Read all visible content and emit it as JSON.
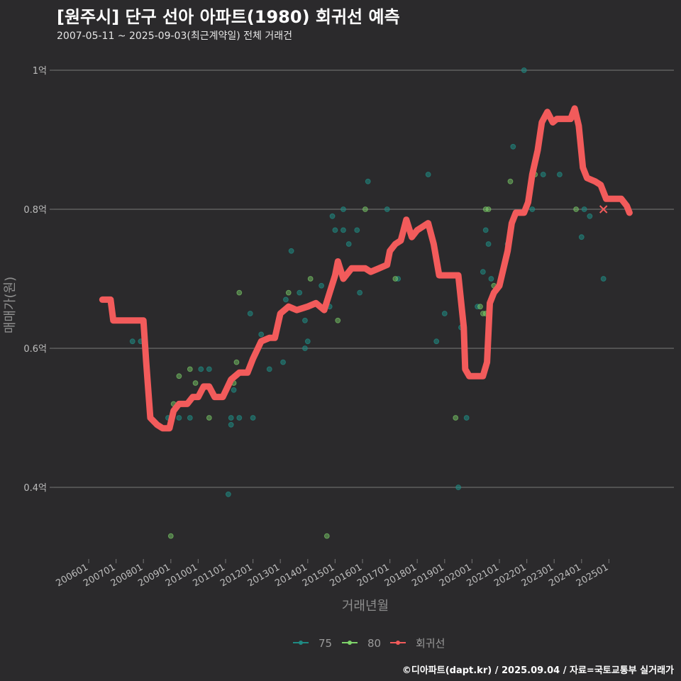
{
  "title": "[원주시] 단구 선아 아파트(1980) 회귀선 예측",
  "subtitle": "2007-05-11 ~ 2025-09-03(최근계약일) 전체 거래건",
  "caption": "©디아파트(dapt.kr) / 2025.09.04 / 자료=국토교통부 실거래가",
  "colors": {
    "background": "#2b2a2c",
    "grid": "#6a6a6a",
    "series_75": "#1f8a83",
    "series_80": "#7ed46a",
    "regression": "#f25b5b"
  },
  "chart_data": {
    "type": "scatter",
    "xlabel": "거래년월",
    "ylabel": "매매가(원)",
    "x_range": [
      2006.0,
      2025.9
    ],
    "ylim": [
      0.3,
      1.0
    ],
    "y_ticks": [
      {
        "value": 0.4,
        "label": "0.4억"
      },
      {
        "value": 0.6,
        "label": "0.6억"
      },
      {
        "value": 0.8,
        "label": "0.8억"
      },
      {
        "value": 1.0,
        "label": "1억"
      }
    ],
    "x_ticks": [
      {
        "value": 2006.0,
        "label": "200601"
      },
      {
        "value": 2007.0,
        "label": "200701"
      },
      {
        "value": 2008.0,
        "label": "200801"
      },
      {
        "value": 2009.0,
        "label": "200901"
      },
      {
        "value": 2010.0,
        "label": "201001"
      },
      {
        "value": 2011.0,
        "label": "201101"
      },
      {
        "value": 2012.0,
        "label": "201201"
      },
      {
        "value": 2013.0,
        "label": "201301"
      },
      {
        "value": 2014.0,
        "label": "201401"
      },
      {
        "value": 2015.0,
        "label": "201501"
      },
      {
        "value": 2016.0,
        "label": "201601"
      },
      {
        "value": 2017.0,
        "label": "201701"
      },
      {
        "value": 2018.0,
        "label": "201801"
      },
      {
        "value": 2019.0,
        "label": "201901"
      },
      {
        "value": 2020.0,
        "label": "202001"
      },
      {
        "value": 2021.0,
        "label": "202101"
      },
      {
        "value": 2022.0,
        "label": "202201"
      },
      {
        "value": 2023.0,
        "label": "202301"
      },
      {
        "value": 2024.0,
        "label": "202401"
      },
      {
        "value": 2025.0,
        "label": "202501"
      }
    ],
    "grid": "horizontal",
    "legend_position": "bottom",
    "legend": [
      {
        "label": "75",
        "kind": "series_75"
      },
      {
        "label": "80",
        "kind": "series_80"
      },
      {
        "label": "회귀선",
        "kind": "regression"
      }
    ],
    "series": [
      {
        "name": "75",
        "points": [
          [
            2007.6,
            0.61
          ],
          [
            2007.9,
            0.61
          ],
          [
            2008.9,
            0.5
          ],
          [
            2009.3,
            0.5
          ],
          [
            2009.7,
            0.5
          ],
          [
            2010.1,
            0.57
          ],
          [
            2010.4,
            0.57
          ],
          [
            2010.6,
            0.53
          ],
          [
            2011.1,
            0.39
          ],
          [
            2011.2,
            0.5
          ],
          [
            2011.2,
            0.49
          ],
          [
            2011.3,
            0.54
          ],
          [
            2011.5,
            0.5
          ],
          [
            2011.9,
            0.65
          ],
          [
            2012.0,
            0.5
          ],
          [
            2012.3,
            0.62
          ],
          [
            2012.6,
            0.57
          ],
          [
            2013.1,
            0.58
          ],
          [
            2013.2,
            0.67
          ],
          [
            2013.4,
            0.74
          ],
          [
            2013.7,
            0.68
          ],
          [
            2013.9,
            0.64
          ],
          [
            2013.9,
            0.6
          ],
          [
            2014.0,
            0.61
          ],
          [
            2014.5,
            0.69
          ],
          [
            2014.8,
            0.66
          ],
          [
            2014.9,
            0.79
          ],
          [
            2015.0,
            0.77
          ],
          [
            2015.3,
            0.8
          ],
          [
            2015.3,
            0.77
          ],
          [
            2015.5,
            0.75
          ],
          [
            2015.8,
            0.77
          ],
          [
            2015.9,
            0.68
          ],
          [
            2016.2,
            0.84
          ],
          [
            2016.9,
            0.8
          ],
          [
            2017.3,
            0.7
          ],
          [
            2018.4,
            0.85
          ],
          [
            2018.7,
            0.61
          ],
          [
            2019.0,
            0.65
          ],
          [
            2019.5,
            0.4
          ],
          [
            2019.6,
            0.63
          ],
          [
            2019.8,
            0.5
          ],
          [
            2020.2,
            0.66
          ],
          [
            2020.4,
            0.71
          ],
          [
            2020.5,
            0.77
          ],
          [
            2020.6,
            0.75
          ],
          [
            2020.7,
            0.7
          ],
          [
            2021.3,
            0.75
          ],
          [
            2021.5,
            0.89
          ],
          [
            2021.9,
            1.0
          ],
          [
            2022.2,
            0.8
          ],
          [
            2022.6,
            0.85
          ],
          [
            2023.2,
            0.85
          ],
          [
            2024.0,
            0.76
          ],
          [
            2024.1,
            0.8
          ],
          [
            2024.3,
            0.79
          ],
          [
            2024.8,
            0.7
          ]
        ]
      },
      {
        "name": "80",
        "points": [
          [
            2009.0,
            0.33
          ],
          [
            2009.1,
            0.52
          ],
          [
            2009.3,
            0.56
          ],
          [
            2009.7,
            0.57
          ],
          [
            2009.9,
            0.55
          ],
          [
            2010.4,
            0.5
          ],
          [
            2011.3,
            0.55
          ],
          [
            2011.4,
            0.58
          ],
          [
            2011.5,
            0.68
          ],
          [
            2013.3,
            0.68
          ],
          [
            2014.1,
            0.7
          ],
          [
            2014.7,
            0.33
          ],
          [
            2015.1,
            0.64
          ],
          [
            2016.1,
            0.8
          ],
          [
            2017.2,
            0.7
          ],
          [
            2019.4,
            0.5
          ],
          [
            2020.3,
            0.66
          ],
          [
            2020.4,
            0.65
          ],
          [
            2020.5,
            0.65
          ],
          [
            2020.5,
            0.8
          ],
          [
            2020.6,
            0.8
          ],
          [
            2020.8,
            0.69
          ],
          [
            2021.4,
            0.84
          ],
          [
            2022.3,
            0.85
          ],
          [
            2023.8,
            0.8
          ]
        ]
      },
      {
        "name": "회귀선",
        "points": [
          [
            2006.5,
            0.67
          ],
          [
            2006.8,
            0.67
          ],
          [
            2006.9,
            0.64
          ],
          [
            2007.2,
            0.64
          ],
          [
            2007.6,
            0.64
          ],
          [
            2008.0,
            0.64
          ],
          [
            2008.1,
            0.58
          ],
          [
            2008.25,
            0.5
          ],
          [
            2008.5,
            0.49
          ],
          [
            2008.7,
            0.485
          ],
          [
            2008.95,
            0.485
          ],
          [
            2009.1,
            0.51
          ],
          [
            2009.3,
            0.52
          ],
          [
            2009.6,
            0.52
          ],
          [
            2009.8,
            0.53
          ],
          [
            2010.0,
            0.53
          ],
          [
            2010.2,
            0.545
          ],
          [
            2010.4,
            0.545
          ],
          [
            2010.6,
            0.53
          ],
          [
            2010.9,
            0.53
          ],
          [
            2011.2,
            0.555
          ],
          [
            2011.5,
            0.565
          ],
          [
            2011.8,
            0.565
          ],
          [
            2012.0,
            0.585
          ],
          [
            2012.3,
            0.61
          ],
          [
            2012.6,
            0.615
          ],
          [
            2012.8,
            0.615
          ],
          [
            2013.0,
            0.65
          ],
          [
            2013.3,
            0.66
          ],
          [
            2013.6,
            0.655
          ],
          [
            2014.0,
            0.66
          ],
          [
            2014.3,
            0.665
          ],
          [
            2014.6,
            0.655
          ],
          [
            2014.8,
            0.68
          ],
          [
            2015.0,
            0.705
          ],
          [
            2015.1,
            0.725
          ],
          [
            2015.3,
            0.7
          ],
          [
            2015.6,
            0.715
          ],
          [
            2015.9,
            0.715
          ],
          [
            2016.1,
            0.715
          ],
          [
            2016.3,
            0.71
          ],
          [
            2016.6,
            0.715
          ],
          [
            2016.9,
            0.72
          ],
          [
            2017.0,
            0.74
          ],
          [
            2017.2,
            0.75
          ],
          [
            2017.4,
            0.755
          ],
          [
            2017.6,
            0.785
          ],
          [
            2017.8,
            0.76
          ],
          [
            2018.0,
            0.77
          ],
          [
            2018.2,
            0.775
          ],
          [
            2018.4,
            0.78
          ],
          [
            2018.6,
            0.75
          ],
          [
            2018.8,
            0.705
          ],
          [
            2019.0,
            0.705
          ],
          [
            2019.5,
            0.705
          ],
          [
            2019.7,
            0.63
          ],
          [
            2019.75,
            0.57
          ],
          [
            2019.9,
            0.56
          ],
          [
            2020.1,
            0.56
          ],
          [
            2020.4,
            0.56
          ],
          [
            2020.55,
            0.58
          ],
          [
            2020.65,
            0.665
          ],
          [
            2020.8,
            0.68
          ],
          [
            2021.0,
            0.69
          ],
          [
            2021.15,
            0.715
          ],
          [
            2021.3,
            0.74
          ],
          [
            2021.45,
            0.78
          ],
          [
            2021.6,
            0.795
          ],
          [
            2021.9,
            0.795
          ],
          [
            2022.05,
            0.81
          ],
          [
            2022.2,
            0.85
          ],
          [
            2022.4,
            0.885
          ],
          [
            2022.55,
            0.925
          ],
          [
            2022.75,
            0.94
          ],
          [
            2022.95,
            0.925
          ],
          [
            2023.1,
            0.93
          ],
          [
            2023.3,
            0.93
          ],
          [
            2023.6,
            0.93
          ],
          [
            2023.75,
            0.945
          ],
          [
            2023.9,
            0.92
          ],
          [
            2024.05,
            0.86
          ],
          [
            2024.2,
            0.845
          ],
          [
            2024.5,
            0.84
          ],
          [
            2024.7,
            0.835
          ],
          [
            2024.9,
            0.815
          ],
          [
            2025.2,
            0.815
          ],
          [
            2025.45,
            0.815
          ],
          [
            2025.65,
            0.805
          ],
          [
            2025.75,
            0.795
          ]
        ]
      }
    ],
    "annotations": [
      {
        "kind": "x-marker",
        "x": 2024.8,
        "y": 0.8
      }
    ]
  }
}
